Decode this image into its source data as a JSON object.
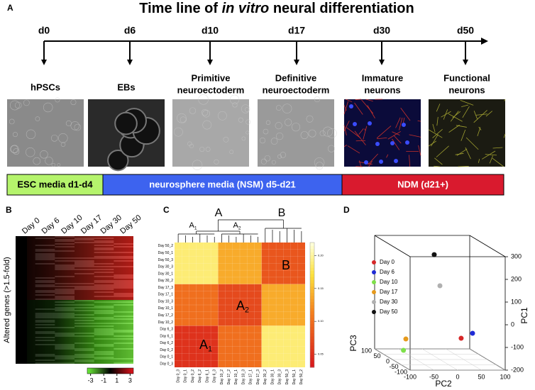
{
  "figure_title": {
    "before": "Time line of ",
    "italic": "in vitro",
    "after": " neural differentiation"
  },
  "panel_a": {
    "letter": "A",
    "stages": [
      {
        "day": "d0",
        "label": [
          "hPSCs"
        ]
      },
      {
        "day": "d6",
        "label": [
          "EBs"
        ]
      },
      {
        "day": "d10",
        "label": [
          "Primitive",
          "neuroectoderm"
        ]
      },
      {
        "day": "d17",
        "label": [
          "Definitive",
          "neuroectoderm"
        ]
      },
      {
        "day": "d30",
        "label": [
          "Immature",
          "neurons"
        ]
      },
      {
        "day": "d50",
        "label": [
          "Functional",
          "neurons"
        ]
      }
    ],
    "media": [
      {
        "label": "ESC media d1-d4",
        "color": "#b5f46c"
      },
      {
        "label": "neurosphere media (NSM) d5-d21",
        "color": "#3d63ef"
      },
      {
        "label": "NDM (d21+)",
        "color": "#d91a2e"
      }
    ]
  },
  "panel_b": {
    "letter": "B",
    "columns": [
      "Day 0",
      "Day 6",
      "Day 10",
      "Day 17",
      "Day 30",
      "Day 50"
    ],
    "y_label": "Altered genes (>1.5-fold)",
    "colorbar_lim": [
      -3.5,
      3.5
    ],
    "colorbar_ticks": [
      -3,
      -1,
      1,
      3
    ]
  },
  "panel_c": {
    "letter": "C",
    "dendrogram_labels": [
      {
        "text": "A"
      },
      {
        "text": "B"
      },
      {
        "text": "A",
        "sub": "1"
      },
      {
        "text": "A",
        "sub": "2"
      }
    ],
    "row_labels": [
      "Day 50_2",
      "Day 50_1",
      "Day 50_3",
      "Day 30_3",
      "Day 30_1",
      "Day 30_2",
      "Day 17_3",
      "Day 17_1",
      "Day 10_3",
      "Day 10_1",
      "Day 17_2",
      "Day 10_2",
      "Day 6_3",
      "Day 6_1",
      "Day 6_2",
      "Day 0_2",
      "Day 0_1",
      "Day 0_3"
    ],
    "column_labels": [
      "Day 0_3",
      "Day 0_1",
      "Day 0_2",
      "Day 6_2",
      "Day 6_1",
      "Day 6_3",
      "Day 10_2",
      "Day 17_2",
      "Day 10_1",
      "Day 10_3",
      "Day 17_1",
      "Day 17_3",
      "Day 30_2",
      "Day 30_1",
      "Day 30_3",
      "Day 50_3",
      "Day 50_1",
      "Day 50_2"
    ],
    "block_labels": [
      {
        "text": "A",
        "sub": "1"
      },
      {
        "text": "A",
        "sub": "2"
      },
      {
        "text": "B"
      }
    ],
    "block_values": [
      [
        0.05,
        0.1,
        0.19
      ],
      [
        0.1,
        0.07,
        0.14
      ],
      [
        0.19,
        0.14,
        0.08
      ]
    ],
    "clim": [
      0.03,
      0.22
    ],
    "colorbar_ticks": [
      {
        "value": 0.2,
        "label": "0.20"
      },
      {
        "value": 0.15,
        "label": "0.15"
      },
      {
        "value": 0.1,
        "label": "0.10"
      },
      {
        "value": 0.05,
        "label": "0.05"
      }
    ]
  },
  "panel_d": {
    "letter": "D",
    "axis_labels": {
      "pc1": "PC1",
      "pc2": "PC2",
      "pc3": "PC3"
    },
    "pc1_lim": [
      -200,
      300
    ],
    "pc2_lim": [
      -100,
      100
    ],
    "pc3_lim": [
      -100,
      100
    ],
    "pc1_ticks": [
      300,
      200,
      100,
      0,
      -100,
      -200
    ],
    "pc2_ticks": [
      -100,
      -50,
      0,
      50,
      100
    ],
    "pc3_ticks": [
      100,
      50,
      0,
      -50,
      -100
    ],
    "series": [
      {
        "name": "Day 0",
        "color": "#d62728",
        "pc1": -83,
        "pc2": 26,
        "pc3": -50
      },
      {
        "name": "Day 6",
        "color": "#1f2bd6",
        "pc1": -61,
        "pc2": 50,
        "pc3": -50
      },
      {
        "name": "Day 10",
        "color": "#7ee04a",
        "pc1": -183,
        "pc2": -58,
        "pc3": 50
      },
      {
        "name": "Day 17",
        "color": "#e69a1c",
        "pc1": -133,
        "pc2": -53,
        "pc3": 50
      },
      {
        "name": "Day 30",
        "color": "#b0b0b0",
        "pc1": 125,
        "pc2": 0,
        "pc3": 0
      },
      {
        "name": "Day 50",
        "color": "#111111",
        "pc1": 262,
        "pc2": -12,
        "pc3": 0
      }
    ]
  }
}
